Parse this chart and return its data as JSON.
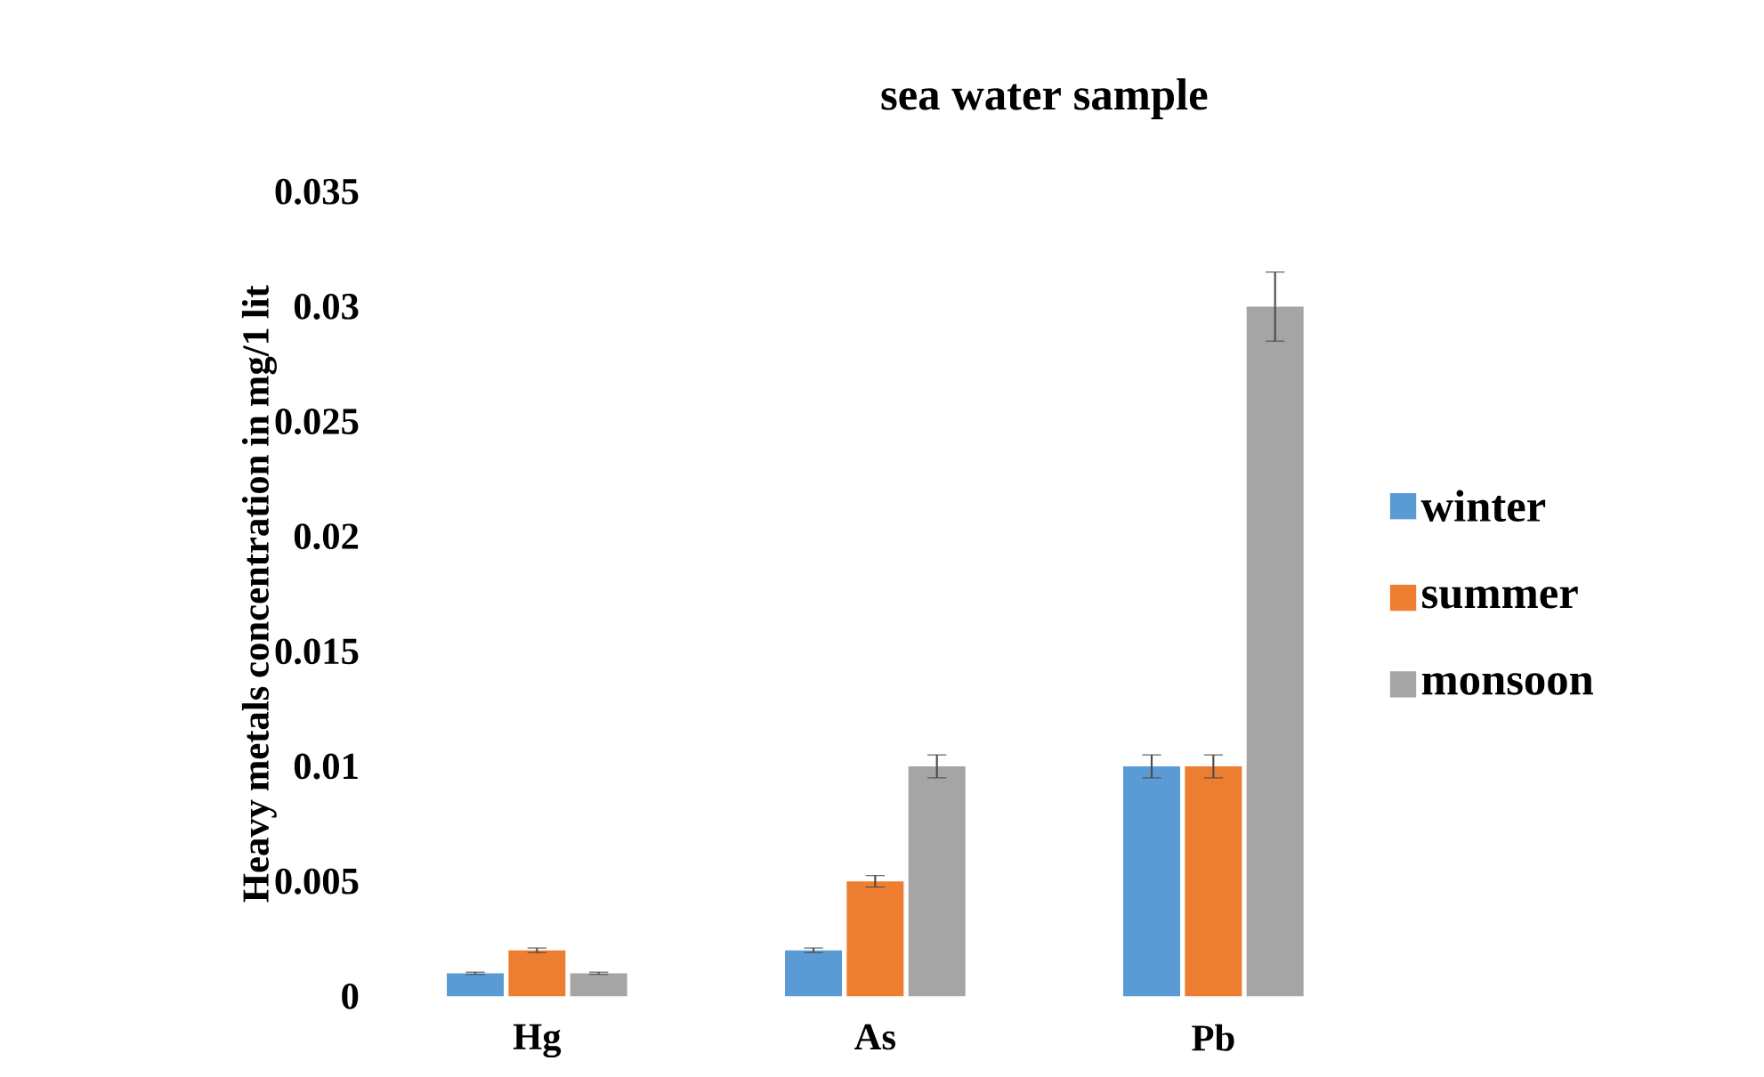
{
  "chart_data": {
    "type": "bar",
    "title": "sea water sample",
    "ylabel": "Heavy metals concentration in mg/1 lit",
    "categories": [
      "Hg",
      "As",
      "Pb",
      null
    ],
    "series": [
      {
        "name": "winter",
        "color": "#5b9bd5",
        "values": [
          0.001,
          0.002,
          0.01,
          null
        ],
        "errors": [
          5e-05,
          0.0001,
          0.0005,
          null
        ]
      },
      {
        "name": "summer",
        "color": "#ed7d31",
        "values": [
          0.002,
          0.005,
          0.01,
          null
        ],
        "errors": [
          0.0001,
          0.00025,
          0.0005,
          null
        ]
      },
      {
        "name": "monsoon",
        "color": "#a5a5a5",
        "values": [
          0.001,
          0.01,
          0.03,
          null
        ],
        "errors": [
          5e-05,
          0.0005,
          0.0015,
          null
        ]
      }
    ],
    "ylim": [
      0,
      0.035
    ],
    "yticks": [
      0,
      0.005,
      0.01,
      0.015,
      0.02,
      0.025,
      0.03,
      0.035
    ],
    "grid": false,
    "legend": "right"
  }
}
